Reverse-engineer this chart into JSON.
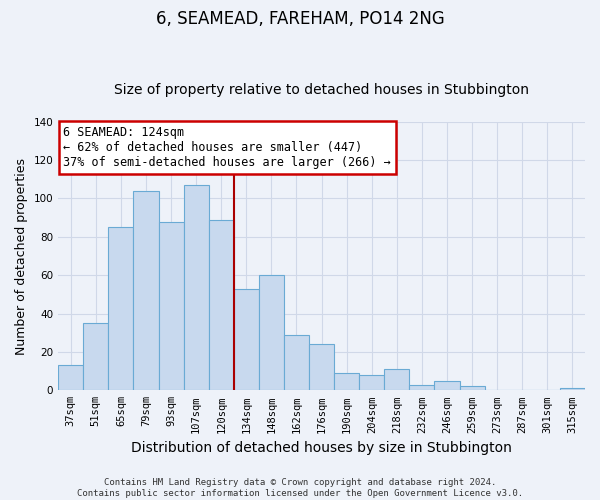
{
  "title": "6, SEAMEAD, FAREHAM, PO14 2NG",
  "subtitle": "Size of property relative to detached houses in Stubbington",
  "xlabel": "Distribution of detached houses by size in Stubbington",
  "ylabel": "Number of detached properties",
  "categories": [
    "37sqm",
    "51sqm",
    "65sqm",
    "79sqm",
    "93sqm",
    "107sqm",
    "120sqm",
    "134sqm",
    "148sqm",
    "162sqm",
    "176sqm",
    "190sqm",
    "204sqm",
    "218sqm",
    "232sqm",
    "246sqm",
    "259sqm",
    "273sqm",
    "287sqm",
    "301sqm",
    "315sqm"
  ],
  "values": [
    13,
    35,
    85,
    104,
    88,
    107,
    89,
    53,
    60,
    29,
    24,
    9,
    8,
    11,
    3,
    5,
    2,
    0,
    0,
    0,
    1
  ],
  "bar_color": "#c8d9ee",
  "bar_edge_color": "#6aaad4",
  "highlight_index": 6,
  "highlight_line_color": "#aa0000",
  "annotation_text": "6 SEAMEAD: 124sqm\n← 62% of detached houses are smaller (447)\n37% of semi-detached houses are larger (266) →",
  "annotation_box_color": "#ffffff",
  "annotation_box_edge_color": "#cc0000",
  "ylim": [
    0,
    140
  ],
  "yticks": [
    0,
    20,
    40,
    60,
    80,
    100,
    120,
    140
  ],
  "footer_text": "Contains HM Land Registry data © Crown copyright and database right 2024.\nContains public sector information licensed under the Open Government Licence v3.0.",
  "title_fontsize": 12,
  "subtitle_fontsize": 10,
  "xlabel_fontsize": 10,
  "ylabel_fontsize": 9,
  "tick_fontsize": 7.5,
  "annotation_fontsize": 8.5,
  "footer_fontsize": 6.5,
  "background_color": "#eef2f9",
  "grid_color": "#d0d8e8"
}
